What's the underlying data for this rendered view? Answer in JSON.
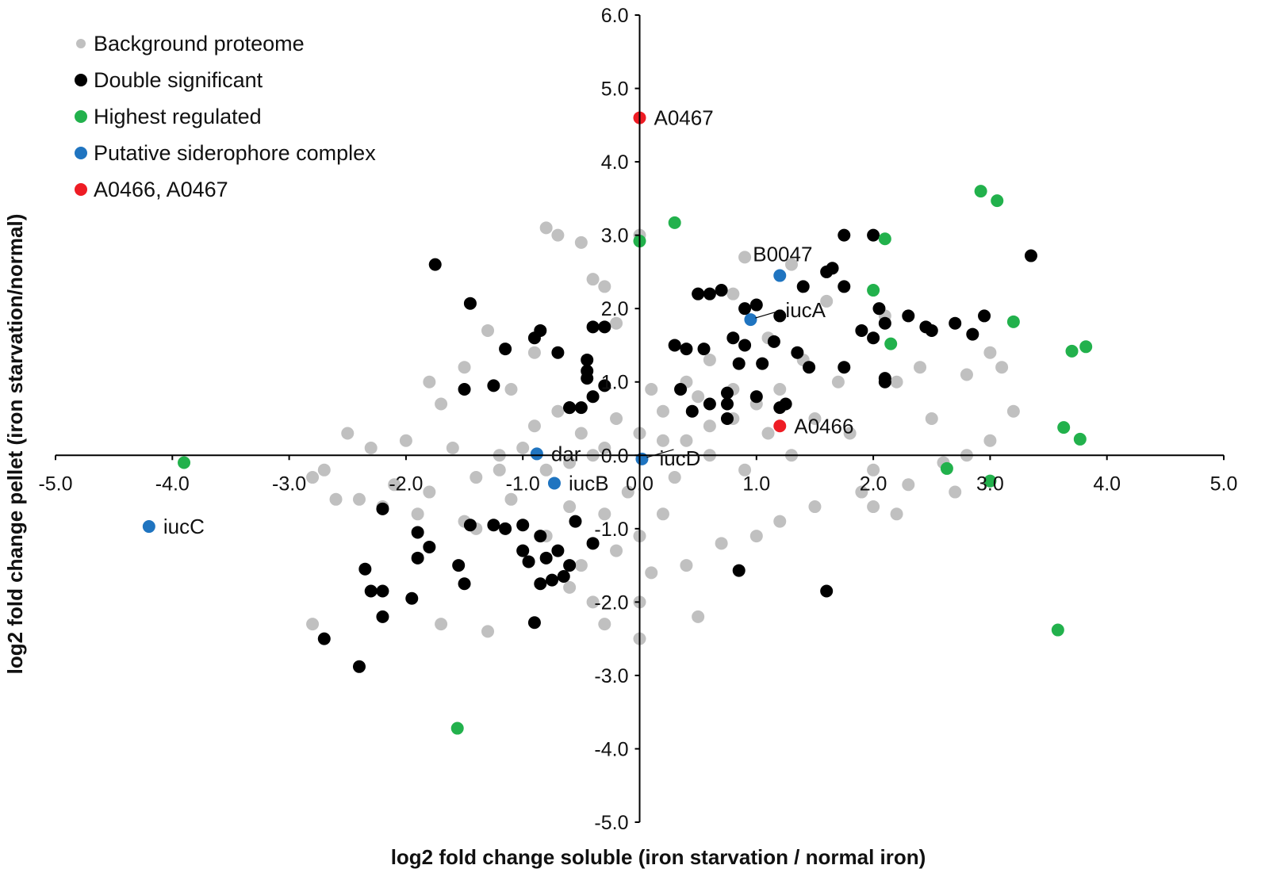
{
  "chart_data": {
    "type": "scatter",
    "title": "",
    "xlabel": "log2 fold change soluble (iron starvation / normal iron)",
    "ylabel": "log2 fold change pellet (iron starvation/normal)",
    "xlim": [
      -5,
      5
    ],
    "ylim": [
      -5,
      6
    ],
    "x_ticks": [
      "-5.0",
      "-4.0",
      "-3.0",
      "-2.0",
      "-1.0",
      "0.0",
      "1.0",
      "2.0",
      "3.0",
      "4.0",
      "5.0"
    ],
    "y_ticks": [
      "-5.0",
      "-4.0",
      "-3.0",
      "-2.0",
      "-1.0",
      "0.0",
      "1.0",
      "2.0",
      "3.0",
      "4.0",
      "5.0",
      "6.0"
    ],
    "axes_cross_at_origin": true,
    "legend_position": "top-left",
    "series": [
      {
        "name": "Background proteome",
        "color": "#c0c0c0",
        "approximate_cloud": true,
        "points": [
          [
            -1.0,
            0.1
          ],
          [
            -0.8,
            -0.2
          ],
          [
            -0.5,
            0.3
          ],
          [
            -0.3,
            0.1
          ],
          [
            -0.2,
            0.5
          ],
          [
            0.0,
            0.3
          ],
          [
            0.2,
            0.6
          ],
          [
            0.4,
            0.2
          ],
          [
            0.6,
            0.4
          ],
          [
            0.3,
            -0.3
          ],
          [
            -0.6,
            -0.1
          ],
          [
            -1.2,
            0.0
          ],
          [
            -1.4,
            -0.3
          ],
          [
            -0.9,
            0.4
          ],
          [
            0.1,
            0.9
          ],
          [
            0.5,
            0.8
          ],
          [
            0.8,
            0.5
          ],
          [
            1.1,
            0.3
          ],
          [
            1.3,
            0.0
          ],
          [
            0.9,
            -0.2
          ],
          [
            -1.6,
            0.1
          ],
          [
            -1.8,
            -0.5
          ],
          [
            -2.0,
            0.2
          ],
          [
            -2.3,
            0.1
          ],
          [
            -2.5,
            0.3
          ],
          [
            -2.7,
            -0.2
          ],
          [
            -2.8,
            -0.3
          ],
          [
            -2.2,
            -0.7
          ],
          [
            -1.5,
            -0.9
          ],
          [
            -1.1,
            -0.6
          ],
          [
            0.2,
            -0.8
          ],
          [
            0.0,
            -1.1
          ],
          [
            -0.2,
            -1.3
          ],
          [
            0.1,
            -1.6
          ],
          [
            0.0,
            -2.0
          ],
          [
            -0.5,
            -1.5
          ],
          [
            -0.4,
            -2.0
          ],
          [
            -0.3,
            -2.3
          ],
          [
            0.0,
            -2.5
          ],
          [
            -1.3,
            -2.4
          ],
          [
            -1.7,
            -2.3
          ],
          [
            -2.8,
            -2.3
          ],
          [
            1.5,
            -0.7
          ],
          [
            1.9,
            -0.5
          ],
          [
            2.3,
            -0.4
          ],
          [
            2.6,
            -0.1
          ],
          [
            2.8,
            0.0
          ],
          [
            3.0,
            0.2
          ],
          [
            3.1,
            1.2
          ],
          [
            3.0,
            1.4
          ],
          [
            2.8,
            1.1
          ],
          [
            2.4,
            1.2
          ],
          [
            2.2,
            1.0
          ],
          [
            2.1,
            1.9
          ],
          [
            1.6,
            2.1
          ],
          [
            1.3,
            2.6
          ],
          [
            0.9,
            2.7
          ],
          [
            0.0,
            3.0
          ],
          [
            -0.8,
            3.1
          ],
          [
            -0.7,
            3.0
          ],
          [
            -0.5,
            2.9
          ],
          [
            -0.4,
            2.4
          ],
          [
            -0.3,
            2.3
          ],
          [
            0.5,
            2.2
          ],
          [
            0.8,
            2.2
          ],
          [
            1.1,
            1.6
          ],
          [
            1.4,
            1.3
          ],
          [
            1.7,
            1.0
          ],
          [
            1.5,
            0.5
          ],
          [
            1.2,
            0.9
          ],
          [
            -1.3,
            1.7
          ],
          [
            -1.5,
            1.2
          ],
          [
            -1.8,
            1.0
          ],
          [
            -1.7,
            0.7
          ],
          [
            -0.2,
            1.8
          ],
          [
            0.3,
            1.5
          ],
          [
            -0.9,
            1.4
          ],
          [
            -1.1,
            0.9
          ],
          [
            0.6,
            1.3
          ],
          [
            0.4,
            -1.5
          ],
          [
            0.7,
            -1.2
          ],
          [
            1.0,
            -1.1
          ],
          [
            1.2,
            -0.9
          ],
          [
            -0.6,
            -0.7
          ],
          [
            -0.8,
            -1.1
          ],
          [
            -1.0,
            -1.3
          ],
          [
            -1.4,
            -1.0
          ],
          [
            -1.9,
            -0.8
          ],
          [
            -2.1,
            -0.4
          ],
          [
            -2.4,
            -0.6
          ],
          [
            0.6,
            0.0
          ],
          [
            -0.4,
            0.0
          ],
          [
            0.8,
            0.9
          ],
          [
            -0.1,
            -0.5
          ],
          [
            0.2,
            0.2
          ],
          [
            -0.7,
            0.6
          ],
          [
            0.4,
            1.0
          ],
          [
            1.0,
            0.7
          ],
          [
            -1.2,
            -0.2
          ],
          [
            -0.3,
            -0.8
          ],
          [
            2.0,
            -0.2
          ],
          [
            2.5,
            0.5
          ],
          [
            1.8,
            0.3
          ],
          [
            2.2,
            -0.8
          ],
          [
            2.0,
            -0.7
          ],
          [
            2.7,
            -0.5
          ],
          [
            3.2,
            0.6
          ],
          [
            0.5,
            -2.2
          ],
          [
            -0.6,
            -1.8
          ],
          [
            -2.6,
            -0.6
          ]
        ]
      },
      {
        "name": "Double significant",
        "color": "#000000",
        "points": [
          [
            -1.75,
            2.6
          ],
          [
            -1.45,
            2.07
          ],
          [
            -1.15,
            1.45
          ],
          [
            -0.9,
            1.6
          ],
          [
            -0.85,
            1.7
          ],
          [
            -0.7,
            1.4
          ],
          [
            -0.45,
            1.3
          ],
          [
            -0.4,
            1.75
          ],
          [
            -0.3,
            1.75
          ],
          [
            -1.5,
            0.9
          ],
          [
            -1.25,
            0.95
          ],
          [
            -0.6,
            0.65
          ],
          [
            -0.45,
            1.15
          ],
          [
            -0.4,
            0.8
          ],
          [
            -0.3,
            0.95
          ],
          [
            -0.5,
            0.65
          ],
          [
            -0.45,
            1.05
          ],
          [
            -0.6,
            0.65
          ],
          [
            -2.2,
            -0.73
          ],
          [
            -1.9,
            -1.05
          ],
          [
            -1.8,
            -1.25
          ],
          [
            -1.9,
            -1.4
          ],
          [
            -1.55,
            -1.5
          ],
          [
            -1.45,
            -0.95
          ],
          [
            -1.25,
            -0.95
          ],
          [
            -1.0,
            -0.95
          ],
          [
            -1.0,
            -1.3
          ],
          [
            -0.8,
            -1.4
          ],
          [
            -0.7,
            -1.3
          ],
          [
            -0.55,
            -0.9
          ],
          [
            -0.4,
            -1.2
          ],
          [
            -0.85,
            -1.1
          ],
          [
            -0.65,
            -1.65
          ],
          [
            -0.95,
            -1.45
          ],
          [
            -1.15,
            -1.0
          ],
          [
            -0.6,
            -1.5
          ],
          [
            -2.35,
            -1.55
          ],
          [
            -2.3,
            -1.85
          ],
          [
            -2.2,
            -1.85
          ],
          [
            -2.2,
            -2.2
          ],
          [
            -1.95,
            -1.95
          ],
          [
            -1.5,
            -1.75
          ],
          [
            -0.85,
            -1.75
          ],
          [
            -0.75,
            -1.7
          ],
          [
            -0.9,
            -2.28
          ],
          [
            -2.7,
            -2.5
          ],
          [
            -2.4,
            -2.88
          ],
          [
            0.3,
            1.5
          ],
          [
            0.4,
            1.45
          ],
          [
            0.5,
            2.2
          ],
          [
            0.6,
            2.2
          ],
          [
            0.7,
            2.25
          ],
          [
            0.55,
            1.45
          ],
          [
            0.8,
            1.6
          ],
          [
            0.9,
            1.5
          ],
          [
            0.85,
            1.25
          ],
          [
            0.9,
            2.0
          ],
          [
            1.0,
            2.05
          ],
          [
            1.05,
            1.25
          ],
          [
            1.15,
            1.55
          ],
          [
            1.35,
            1.4
          ],
          [
            1.45,
            1.2
          ],
          [
            1.2,
            1.9
          ],
          [
            1.4,
            2.3
          ],
          [
            1.6,
            2.5
          ],
          [
            1.65,
            2.55
          ],
          [
            1.75,
            2.3
          ],
          [
            1.75,
            3.0
          ],
          [
            2.0,
            3.0
          ],
          [
            2.05,
            2.0
          ],
          [
            2.1,
            1.8
          ],
          [
            2.3,
            1.9
          ],
          [
            2.45,
            1.75
          ],
          [
            2.5,
            1.7
          ],
          [
            2.7,
            1.8
          ],
          [
            2.85,
            1.65
          ],
          [
            2.95,
            1.9
          ],
          [
            3.35,
            2.72
          ],
          [
            1.9,
            1.7
          ],
          [
            1.75,
            1.2
          ],
          [
            2.1,
            1.05
          ],
          [
            2.1,
            1.0
          ],
          [
            0.35,
            0.9
          ],
          [
            0.45,
            0.6
          ],
          [
            0.6,
            0.7
          ],
          [
            0.75,
            0.7
          ],
          [
            0.75,
            0.85
          ],
          [
            0.75,
            0.5
          ],
          [
            1.0,
            0.8
          ],
          [
            1.25,
            0.7
          ],
          [
            1.2,
            0.65
          ],
          [
            0.85,
            -1.57
          ],
          [
            1.6,
            -1.85
          ],
          [
            2.0,
            1.6
          ]
        ]
      },
      {
        "name": "Highest regulated",
        "color": "#22b14c",
        "points": [
          [
            -3.9,
            -0.1
          ],
          [
            0.0,
            2.92
          ],
          [
            0.3,
            3.17
          ],
          [
            2.1,
            2.95
          ],
          [
            2.0,
            2.25
          ],
          [
            2.15,
            1.52
          ],
          [
            2.92,
            3.6
          ],
          [
            3.06,
            3.47
          ],
          [
            3.2,
            1.82
          ],
          [
            3.7,
            1.42
          ],
          [
            3.82,
            1.48
          ],
          [
            3.63,
            0.38
          ],
          [
            3.77,
            0.22
          ],
          [
            2.63,
            -0.18
          ],
          [
            3.0,
            -0.35
          ],
          [
            3.58,
            -2.38
          ],
          [
            -1.56,
            -3.72
          ]
        ]
      },
      {
        "name": "Putative siderophore complex",
        "color": "#1f74c0",
        "points": [
          {
            "x": 1.2,
            "y": 2.45,
            "label": "B0047"
          },
          {
            "x": 0.95,
            "y": 1.85,
            "label": "iucA"
          },
          {
            "x": -0.88,
            "y": 0.02,
            "label": "dar"
          },
          {
            "x": 0.02,
            "y": -0.05,
            "label": "iucD"
          },
          {
            "x": -0.73,
            "y": -0.38,
            "label": "iucB"
          },
          {
            "x": -4.2,
            "y": -0.97,
            "label": "iucC"
          }
        ]
      },
      {
        "name": "A0466, A0467",
        "color": "#ee1c24",
        "points": [
          {
            "x": 0.0,
            "y": 4.6,
            "label": "A0467"
          },
          {
            "x": 1.2,
            "y": 0.4,
            "label": "A0466"
          }
        ]
      }
    ]
  }
}
